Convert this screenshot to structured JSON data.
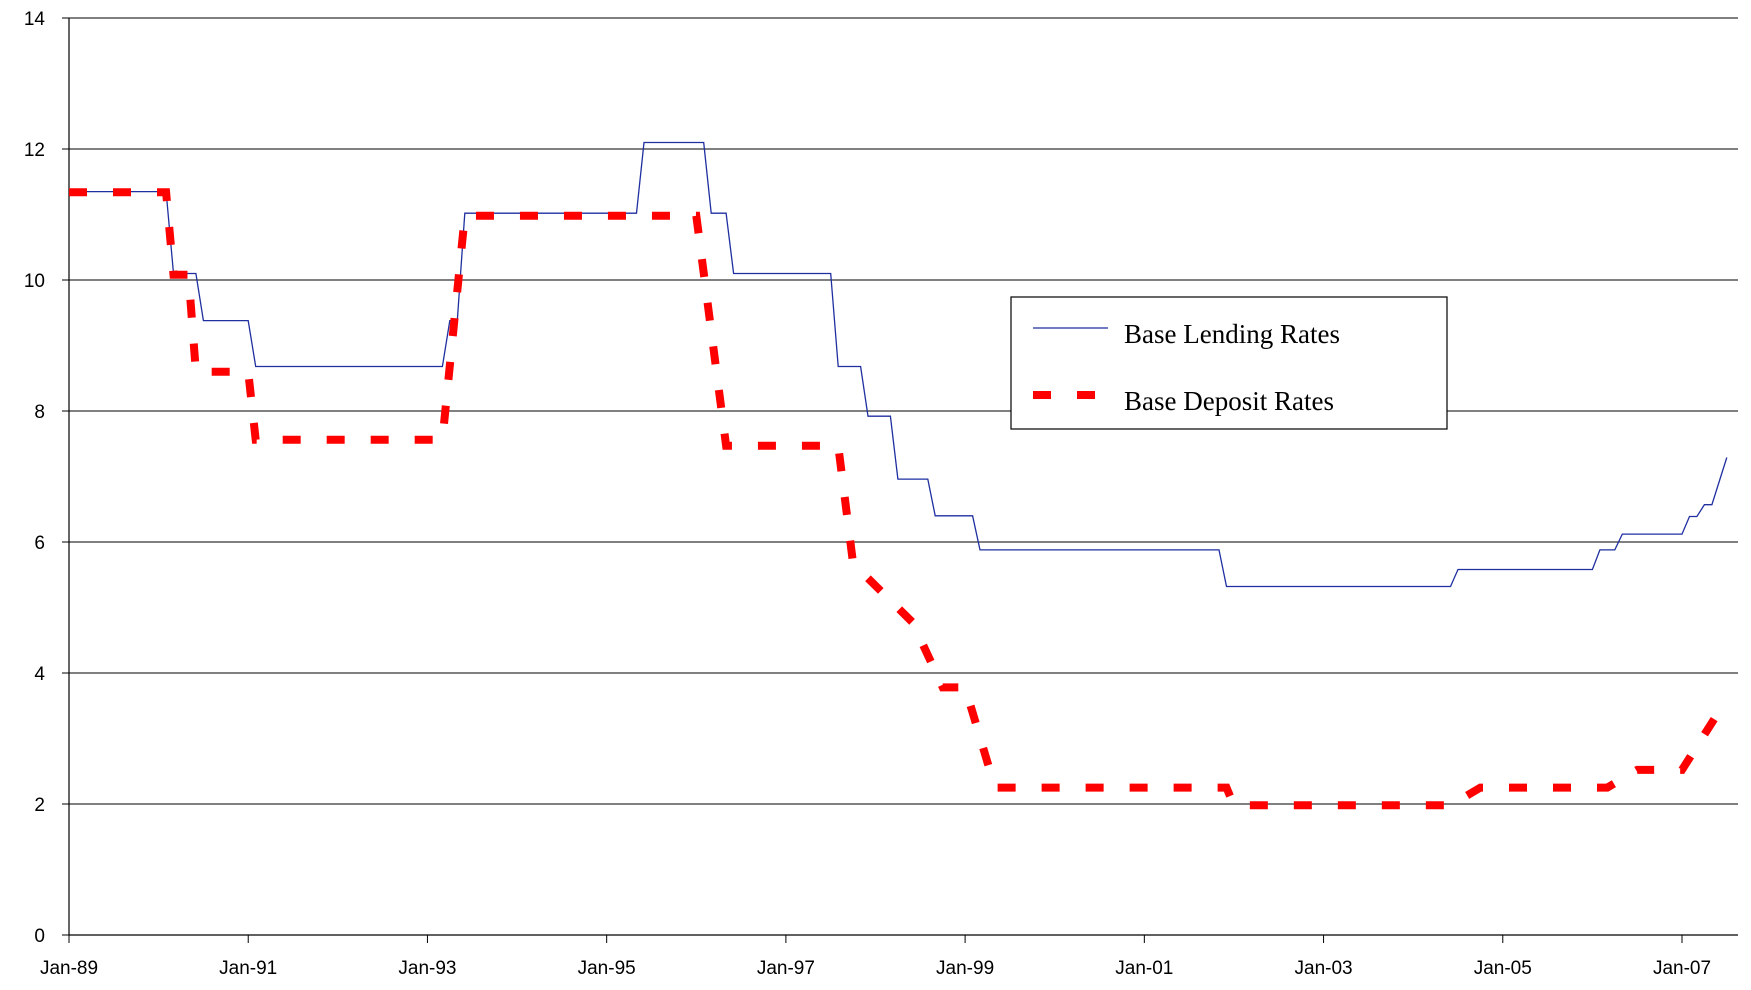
{
  "chart_data": {
    "type": "line",
    "title": "",
    "xlabel": "",
    "ylabel": "",
    "ylim": [
      0,
      14
    ],
    "yticks": [
      0,
      2,
      4,
      6,
      8,
      10,
      12,
      14
    ],
    "ytick_labels": [
      "0",
      "2",
      "4",
      "6",
      "8",
      "10",
      "12",
      "14"
    ],
    "xlim": [
      "1989-01",
      "2007-07"
    ],
    "xticks": [
      "1989-01",
      "1991-01",
      "1993-01",
      "1995-01",
      "1997-01",
      "1999-01",
      "2001-01",
      "2003-01",
      "2005-01",
      "2007-01"
    ],
    "xtick_labels": [
      "Jan-89",
      "Jan-91",
      "Jan-93",
      "Jan-95",
      "Jan-97",
      "Jan-99",
      "Jan-01",
      "Jan-03",
      "Jan-05",
      "Jan-07"
    ],
    "grid": true,
    "legend_position": "center-right",
    "series": [
      {
        "name": "Base Lending Rates",
        "color": "#1f2fa0",
        "style": "solid",
        "points": [
          [
            "1989-01",
            11.35
          ],
          [
            "1990-02",
            11.35
          ],
          [
            "1990-03",
            10.1
          ],
          [
            "1990-06",
            10.1
          ],
          [
            "1990-07",
            9.38
          ],
          [
            "1991-01",
            9.38
          ],
          [
            "1991-02",
            8.68
          ],
          [
            "1993-03",
            8.68
          ],
          [
            "1993-04",
            9.38
          ],
          [
            "1993-05",
            9.38
          ],
          [
            "1993-06",
            11.02
          ],
          [
            "1995-05",
            11.02
          ],
          [
            "1995-06",
            12.1
          ],
          [
            "1996-02",
            12.1
          ],
          [
            "1996-03",
            11.02
          ],
          [
            "1996-05",
            11.02
          ],
          [
            "1996-06",
            10.1
          ],
          [
            "1997-07",
            10.1
          ],
          [
            "1997-08",
            8.68
          ],
          [
            "1997-11",
            8.68
          ],
          [
            "1997-12",
            7.92
          ],
          [
            "1998-03",
            7.92
          ],
          [
            "1998-04",
            6.96
          ],
          [
            "1998-08",
            6.96
          ],
          [
            "1998-09",
            6.4
          ],
          [
            "1999-02",
            6.4
          ],
          [
            "1999-03",
            5.88
          ],
          [
            "2001-11",
            5.88
          ],
          [
            "2001-12",
            5.32
          ],
          [
            "2004-06",
            5.32
          ],
          [
            "2004-07",
            5.58
          ],
          [
            "2006-01",
            5.58
          ],
          [
            "2006-02",
            5.88
          ],
          [
            "2006-04",
            5.88
          ],
          [
            "2006-05",
            6.12
          ],
          [
            "2007-01",
            6.12
          ],
          [
            "2007-02",
            6.39
          ],
          [
            "2007-03",
            6.39
          ],
          [
            "2007-04",
            6.57
          ],
          [
            "2007-05",
            6.57
          ],
          [
            "2007-07",
            7.29
          ]
        ]
      },
      {
        "name": "Base Deposit Rates",
        "color": "#ff0000",
        "style": "dashed",
        "points": [
          [
            "1989-01",
            11.34
          ],
          [
            "1990-02",
            11.34
          ],
          [
            "1990-03",
            10.08
          ],
          [
            "1990-05",
            10.08
          ],
          [
            "1990-06",
            8.6
          ],
          [
            "1991-01",
            8.6
          ],
          [
            "1991-02",
            7.56
          ],
          [
            "1993-03",
            7.56
          ],
          [
            "1993-06",
            10.98
          ],
          [
            "1996-01",
            10.98
          ],
          [
            "1996-05",
            7.47
          ],
          [
            "1997-08",
            7.47
          ],
          [
            "1997-10",
            5.67
          ],
          [
            "1998-02",
            5.22
          ],
          [
            "1998-06",
            4.77
          ],
          [
            "1998-10",
            3.78
          ],
          [
            "1999-01",
            3.78
          ],
          [
            "1999-05",
            2.25
          ],
          [
            "2001-12",
            2.25
          ],
          [
            "2002-01",
            1.98
          ],
          [
            "2004-06",
            1.98
          ],
          [
            "2004-10",
            2.25
          ],
          [
            "2006-03",
            2.25
          ],
          [
            "2006-07",
            2.52
          ],
          [
            "2007-01",
            2.52
          ],
          [
            "2007-07",
            3.6
          ]
        ]
      }
    ]
  }
}
